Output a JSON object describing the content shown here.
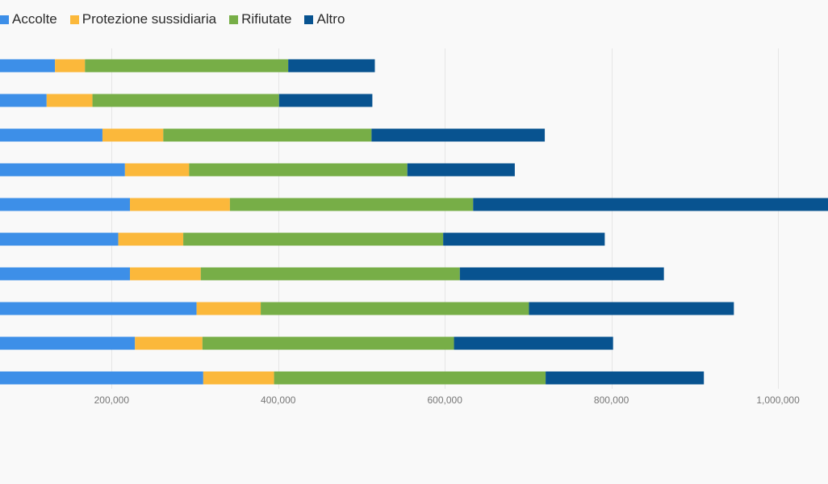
{
  "legend": [
    {
      "label": "Accolte",
      "color": "#3d8fe8"
    },
    {
      "label": "Protezione sussidiaria",
      "color": "#fbb83b"
    },
    {
      "label": "Rifiutate",
      "color": "#77ae47"
    },
    {
      "label": "Altro",
      "color": "#085390"
    }
  ],
  "chart_data": {
    "type": "bar",
    "orientation": "horizontal",
    "stacked": true,
    "title": "",
    "xlabel": "",
    "ylabel": "",
    "categories": [
      "",
      "",
      "",
      "",
      "",
      "",
      "",
      "",
      "",
      ""
    ],
    "series": [
      {
        "name": "Accolte",
        "color": "#3d8fe8",
        "values": [
          132000,
          122000,
          189000,
          216000,
          222000,
          208000,
          222000,
          302000,
          228000,
          310000
        ]
      },
      {
        "name": "Protezione sussidiaria",
        "color": "#fbb83b",
        "values": [
          36000,
          55000,
          73000,
          77000,
          120000,
          78000,
          85000,
          77000,
          81000,
          85000
        ]
      },
      {
        "name": "Rifiutate",
        "color": "#77ae47",
        "values": [
          244000,
          224000,
          250000,
          262000,
          292000,
          312000,
          311000,
          322000,
          302000,
          326000
        ]
      },
      {
        "name": "Altro",
        "color": "#085390",
        "values": [
          104000,
          112000,
          208000,
          129000,
          455000,
          194000,
          245000,
          246000,
          191000,
          190000
        ]
      }
    ],
    "x_range": [
      66000,
      1060000
    ],
    "x_ticks": [
      200000,
      400000,
      600000,
      800000,
      1000000
    ],
    "x_tick_labels": [
      "200,000",
      "400,000",
      "600,000",
      "800,000",
      "1,000,000"
    ],
    "grid": true,
    "legend_position": "top-left"
  }
}
